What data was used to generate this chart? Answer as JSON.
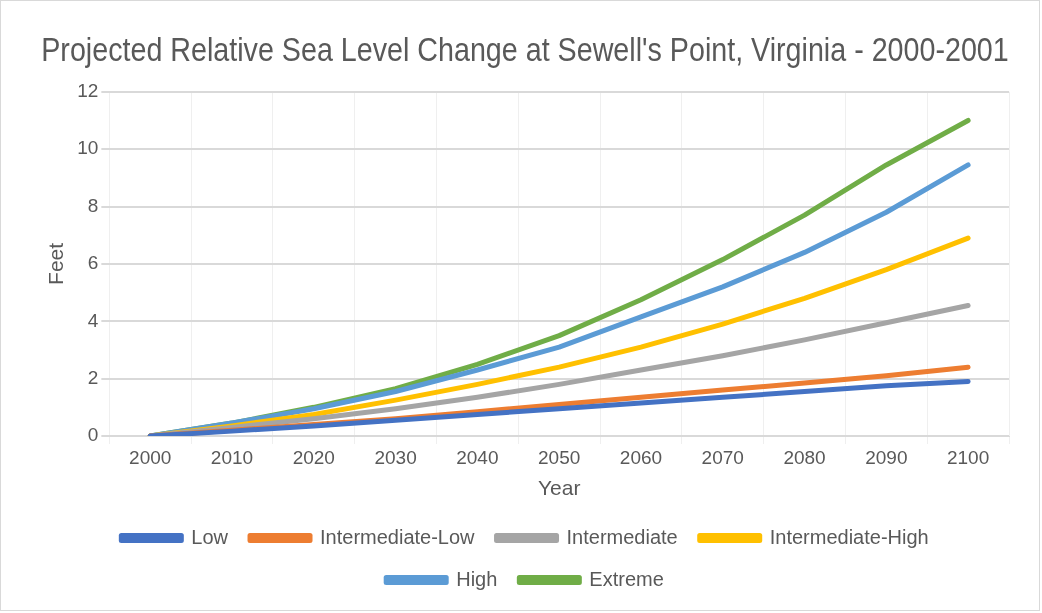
{
  "chart_data": {
    "type": "line",
    "title": "Projected Relative Sea Level Change at Sewell's Point, Virginia - 2000-2001",
    "xlabel": "Year",
    "ylabel": "Feet",
    "categories": [
      "2000",
      "2010",
      "2020",
      "2030",
      "2040",
      "2050",
      "2060",
      "2070",
      "2080",
      "2090",
      "2100"
    ],
    "ylim": [
      0,
      12
    ],
    "yticks": [
      0,
      2,
      4,
      6,
      8,
      10,
      12
    ],
    "grid": true,
    "legend": "bottom",
    "marker": "none",
    "line_style": "solid",
    "series": [
      {
        "name": "Low",
        "color": "#4472c4",
        "values": [
          0,
          0.17,
          0.35,
          0.55,
          0.75,
          0.95,
          1.15,
          1.35,
          1.55,
          1.75,
          1.9
        ]
      },
      {
        "name": "Intermediate-Low",
        "color": "#ed7d31",
        "values": [
          0,
          0.2,
          0.4,
          0.6,
          0.85,
          1.1,
          1.35,
          1.6,
          1.85,
          2.1,
          2.4
        ]
      },
      {
        "name": "Intermediate",
        "color": "#a5a5a5",
        "values": [
          0,
          0.3,
          0.6,
          0.95,
          1.35,
          1.8,
          2.3,
          2.8,
          3.35,
          3.95,
          4.55
        ]
      },
      {
        "name": "Intermediate-High",
        "color": "#ffc000",
        "values": [
          0,
          0.35,
          0.75,
          1.25,
          1.8,
          2.4,
          3.1,
          3.9,
          4.8,
          5.8,
          6.9
        ]
      },
      {
        "name": "High",
        "color": "#5b9bd5",
        "values": [
          0,
          0.45,
          0.95,
          1.55,
          2.3,
          3.1,
          4.15,
          5.2,
          6.4,
          7.8,
          9.45
        ]
      },
      {
        "name": "Extreme",
        "color": "#70ad47",
        "values": [
          0,
          0.45,
          1.0,
          1.65,
          2.5,
          3.5,
          4.75,
          6.15,
          7.7,
          9.45,
          11.0
        ]
      }
    ]
  }
}
